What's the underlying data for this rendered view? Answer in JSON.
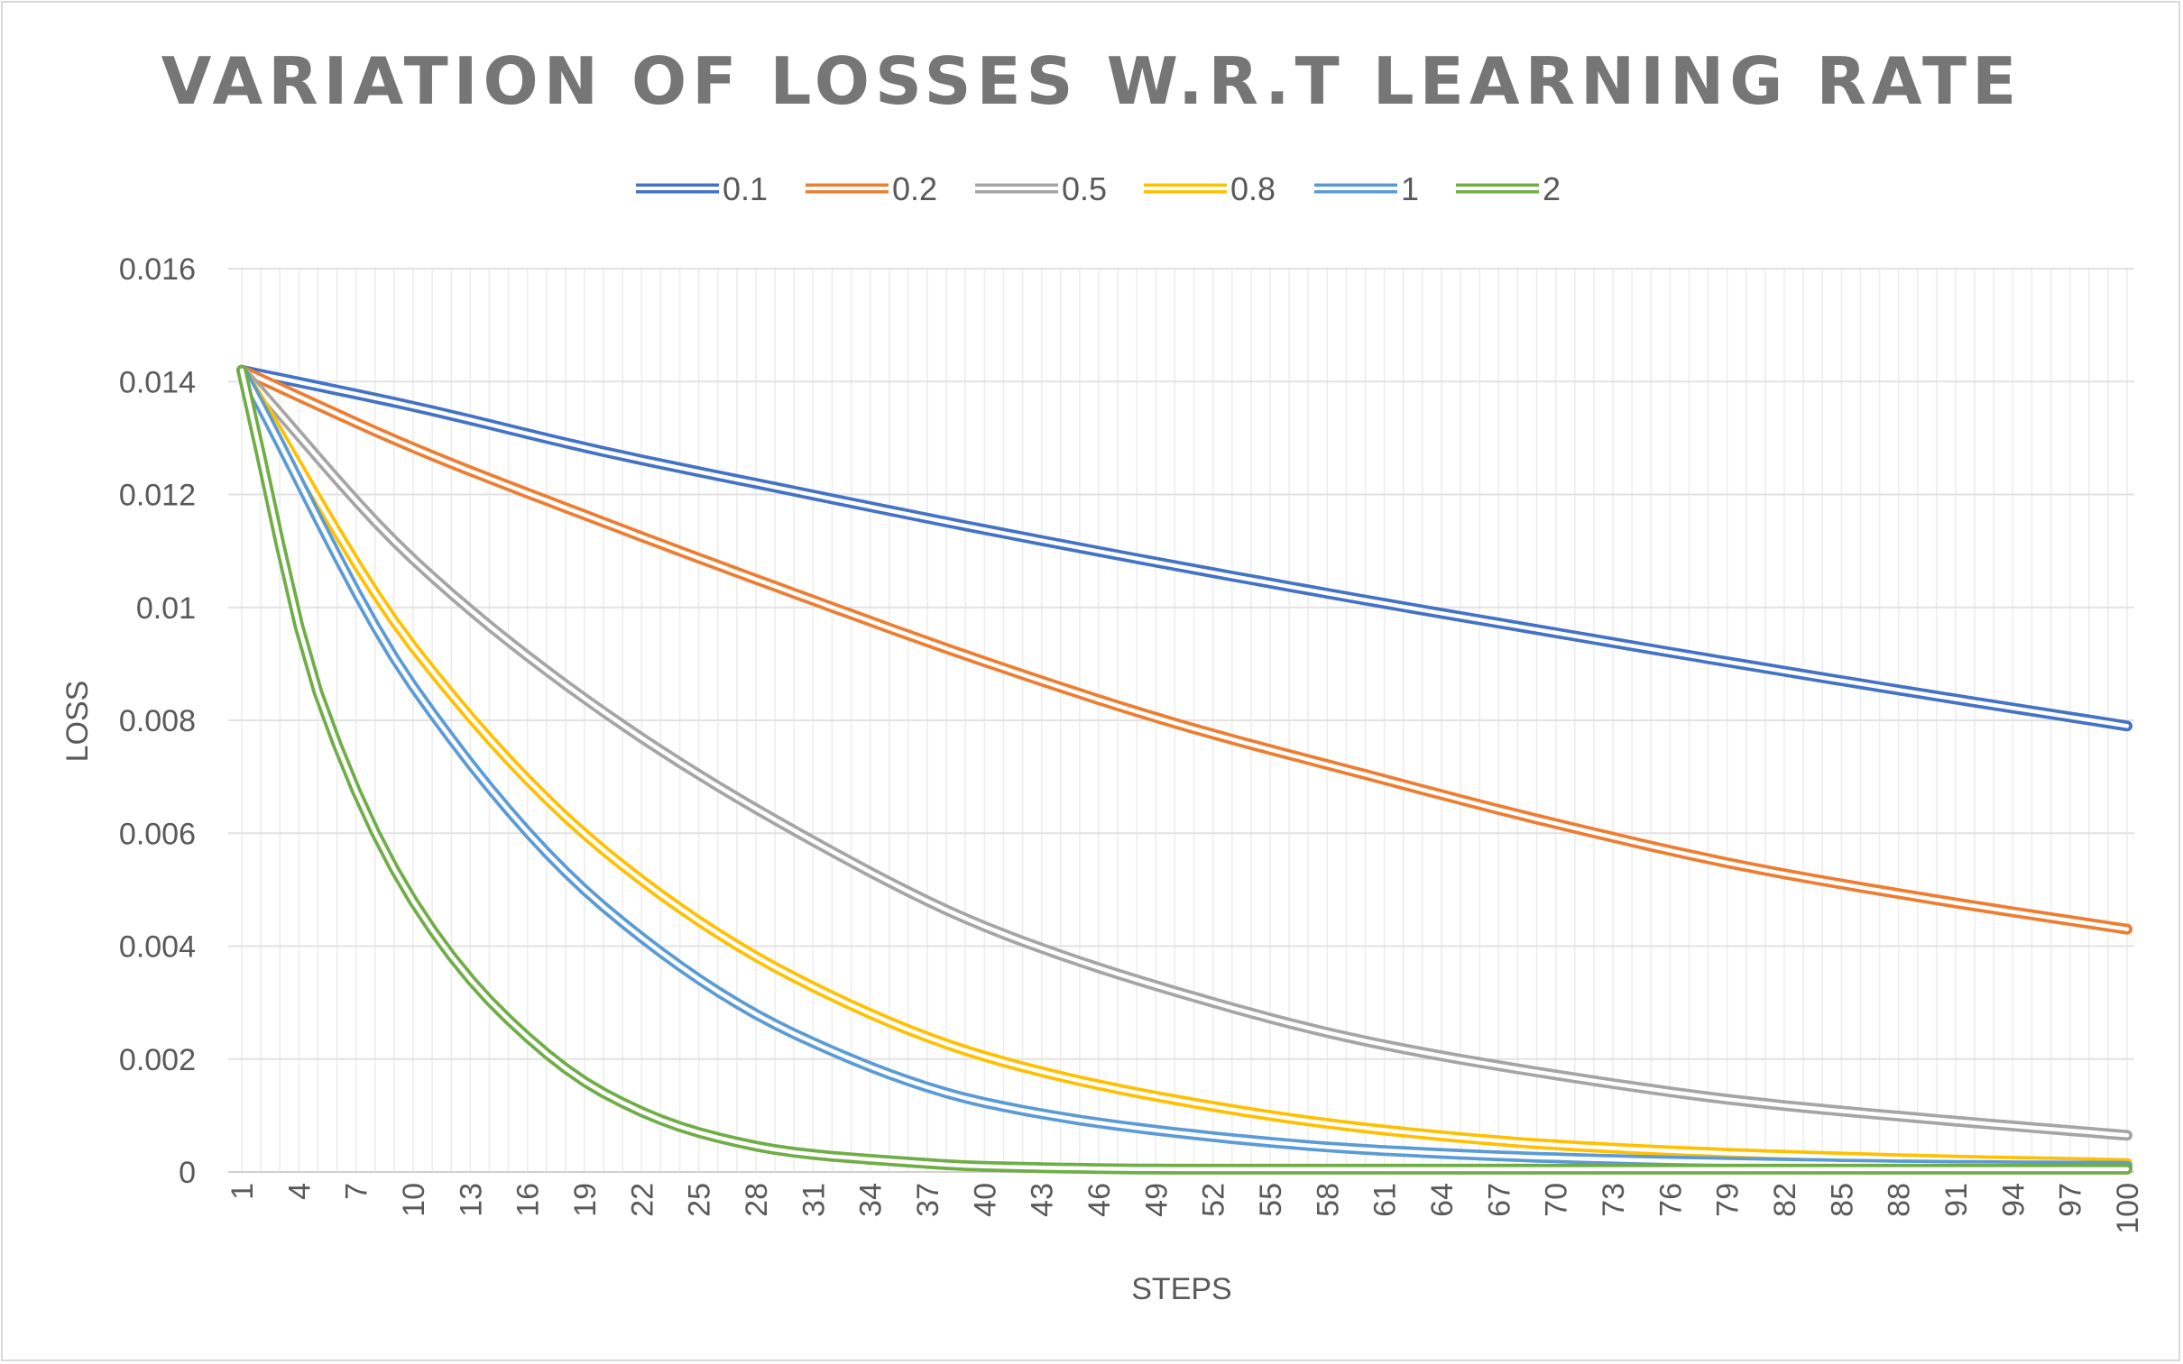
{
  "chart_data": {
    "type": "line",
    "title": "VARIATION OF LOSSES W.R.T LEARNING RATE",
    "xlabel": "STEPS",
    "ylabel": "LOSS",
    "x_range": [
      1,
      100
    ],
    "x_tick_labels": [
      "1",
      "4",
      "7",
      "10",
      "13",
      "16",
      "19",
      "22",
      "25",
      "28",
      "31",
      "34",
      "37",
      "40",
      "43",
      "46",
      "49",
      "52",
      "55",
      "58",
      "61",
      "64",
      "67",
      "70",
      "73",
      "76",
      "79",
      "82",
      "85",
      "88",
      "91",
      "94",
      "97",
      "100"
    ],
    "ylim": [
      0,
      0.016
    ],
    "y_tick_labels": [
      "0",
      "0.002",
      "0.004",
      "0.006",
      "0.008",
      "0.01",
      "0.012",
      "0.014",
      "0.016"
    ],
    "grid": true,
    "legend_position": "top",
    "line_style": "double",
    "series": [
      {
        "name": "0.1",
        "color": "#4472c4",
        "x": [
          1,
          10,
          20,
          30,
          40,
          50,
          60,
          70,
          80,
          90,
          100
        ],
        "values": [
          0.0142,
          0.01356,
          0.01276,
          0.01206,
          0.01138,
          0.01074,
          0.01013,
          0.00955,
          0.00898,
          0.00843,
          0.0079
        ]
      },
      {
        "name": "0.2",
        "color": "#ed7d31",
        "x": [
          1,
          10,
          20,
          30,
          40,
          50,
          60,
          70,
          80,
          90,
          100
        ],
        "values": [
          0.0142,
          0.01283,
          0.01151,
          0.01025,
          0.00904,
          0.00795,
          0.00704,
          0.00617,
          0.00541,
          0.00482,
          0.0043
        ]
      },
      {
        "name": "0.5",
        "color": "#a5a5a5",
        "x": [
          1,
          10,
          20,
          30,
          40,
          50,
          60,
          70,
          80,
          90,
          100
        ],
        "values": [
          0.0142,
          0.01085,
          0.00815,
          0.00605,
          0.00435,
          0.0032,
          0.00232,
          0.00172,
          0.00125,
          0.00093,
          0.00065
        ]
      },
      {
        "name": "0.8",
        "color": "#ffc000",
        "x": [
          1,
          10,
          20,
          30,
          40,
          50,
          60,
          70,
          80,
          90,
          100
        ],
        "values": [
          0.0142,
          0.0093,
          0.0057,
          0.00345,
          0.00205,
          0.00128,
          0.00078,
          0.00048,
          0.00032,
          0.00022,
          0.00015
        ]
      },
      {
        "name": "1",
        "color": "#5b9bd5",
        "x": [
          1,
          10,
          20,
          30,
          40,
          50,
          60,
          70,
          80,
          90,
          100
        ],
        "values": [
          0.0142,
          0.0086,
          0.0047,
          0.00245,
          0.00123,
          0.0007,
          0.0004,
          0.00025,
          0.00017,
          0.00012,
          0.0001
        ]
      },
      {
        "name": "2",
        "color": "#70ad47",
        "x": [
          1,
          5,
          10,
          15,
          20,
          25,
          30,
          35,
          40,
          50,
          60,
          70,
          80,
          90,
          100
        ],
        "values": [
          0.0142,
          0.0085,
          0.0048,
          0.0027,
          0.0014,
          0.0007,
          0.00035,
          0.0002,
          0.0001,
          5e-05,
          5e-05,
          5e-05,
          5e-05,
          5e-05,
          5e-05
        ]
      }
    ]
  }
}
